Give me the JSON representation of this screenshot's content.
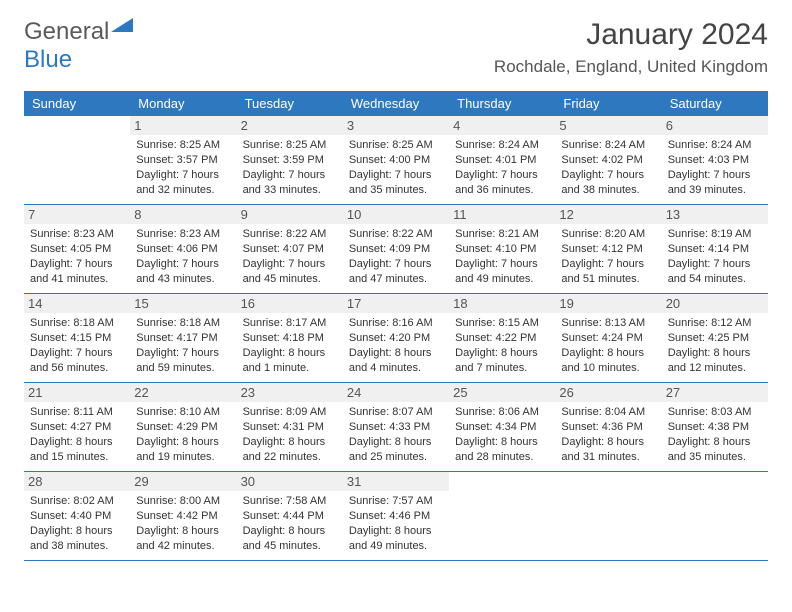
{
  "logo": {
    "part1": "General",
    "part2": "Blue"
  },
  "title": "January 2024",
  "location": "Rochdale, England, United Kingdom",
  "colors": {
    "accent": "#2e78c0",
    "header_bg": "#2e78c0",
    "header_text": "#ffffff",
    "daynum_bg": "#f0f0f0",
    "row_border": "#2e78c0",
    "text": "#333333",
    "title_color": "#444444",
    "logo_gray": "#5a5a5a"
  },
  "typography": {
    "title_fontsize": 30,
    "location_fontsize": 17,
    "dow_fontsize": 13,
    "daynum_fontsize": 13,
    "body_fontsize": 11
  },
  "days_of_week": [
    "Sunday",
    "Monday",
    "Tuesday",
    "Wednesday",
    "Thursday",
    "Friday",
    "Saturday"
  ],
  "weeks": [
    [
      null,
      {
        "n": "1",
        "sunrise": "Sunrise: 8:25 AM",
        "sunset": "Sunset: 3:57 PM",
        "d1": "Daylight: 7 hours",
        "d2": "and 32 minutes."
      },
      {
        "n": "2",
        "sunrise": "Sunrise: 8:25 AM",
        "sunset": "Sunset: 3:59 PM",
        "d1": "Daylight: 7 hours",
        "d2": "and 33 minutes."
      },
      {
        "n": "3",
        "sunrise": "Sunrise: 8:25 AM",
        "sunset": "Sunset: 4:00 PM",
        "d1": "Daylight: 7 hours",
        "d2": "and 35 minutes."
      },
      {
        "n": "4",
        "sunrise": "Sunrise: 8:24 AM",
        "sunset": "Sunset: 4:01 PM",
        "d1": "Daylight: 7 hours",
        "d2": "and 36 minutes."
      },
      {
        "n": "5",
        "sunrise": "Sunrise: 8:24 AM",
        "sunset": "Sunset: 4:02 PM",
        "d1": "Daylight: 7 hours",
        "d2": "and 38 minutes."
      },
      {
        "n": "6",
        "sunrise": "Sunrise: 8:24 AM",
        "sunset": "Sunset: 4:03 PM",
        "d1": "Daylight: 7 hours",
        "d2": "and 39 minutes."
      }
    ],
    [
      {
        "n": "7",
        "sunrise": "Sunrise: 8:23 AM",
        "sunset": "Sunset: 4:05 PM",
        "d1": "Daylight: 7 hours",
        "d2": "and 41 minutes."
      },
      {
        "n": "8",
        "sunrise": "Sunrise: 8:23 AM",
        "sunset": "Sunset: 4:06 PM",
        "d1": "Daylight: 7 hours",
        "d2": "and 43 minutes."
      },
      {
        "n": "9",
        "sunrise": "Sunrise: 8:22 AM",
        "sunset": "Sunset: 4:07 PM",
        "d1": "Daylight: 7 hours",
        "d2": "and 45 minutes."
      },
      {
        "n": "10",
        "sunrise": "Sunrise: 8:22 AM",
        "sunset": "Sunset: 4:09 PM",
        "d1": "Daylight: 7 hours",
        "d2": "and 47 minutes."
      },
      {
        "n": "11",
        "sunrise": "Sunrise: 8:21 AM",
        "sunset": "Sunset: 4:10 PM",
        "d1": "Daylight: 7 hours",
        "d2": "and 49 minutes."
      },
      {
        "n": "12",
        "sunrise": "Sunrise: 8:20 AM",
        "sunset": "Sunset: 4:12 PM",
        "d1": "Daylight: 7 hours",
        "d2": "and 51 minutes."
      },
      {
        "n": "13",
        "sunrise": "Sunrise: 8:19 AM",
        "sunset": "Sunset: 4:14 PM",
        "d1": "Daylight: 7 hours",
        "d2": "and 54 minutes."
      }
    ],
    [
      {
        "n": "14",
        "sunrise": "Sunrise: 8:18 AM",
        "sunset": "Sunset: 4:15 PM",
        "d1": "Daylight: 7 hours",
        "d2": "and 56 minutes."
      },
      {
        "n": "15",
        "sunrise": "Sunrise: 8:18 AM",
        "sunset": "Sunset: 4:17 PM",
        "d1": "Daylight: 7 hours",
        "d2": "and 59 minutes."
      },
      {
        "n": "16",
        "sunrise": "Sunrise: 8:17 AM",
        "sunset": "Sunset: 4:18 PM",
        "d1": "Daylight: 8 hours",
        "d2": "and 1 minute."
      },
      {
        "n": "17",
        "sunrise": "Sunrise: 8:16 AM",
        "sunset": "Sunset: 4:20 PM",
        "d1": "Daylight: 8 hours",
        "d2": "and 4 minutes."
      },
      {
        "n": "18",
        "sunrise": "Sunrise: 8:15 AM",
        "sunset": "Sunset: 4:22 PM",
        "d1": "Daylight: 8 hours",
        "d2": "and 7 minutes."
      },
      {
        "n": "19",
        "sunrise": "Sunrise: 8:13 AM",
        "sunset": "Sunset: 4:24 PM",
        "d1": "Daylight: 8 hours",
        "d2": "and 10 minutes."
      },
      {
        "n": "20",
        "sunrise": "Sunrise: 8:12 AM",
        "sunset": "Sunset: 4:25 PM",
        "d1": "Daylight: 8 hours",
        "d2": "and 12 minutes."
      }
    ],
    [
      {
        "n": "21",
        "sunrise": "Sunrise: 8:11 AM",
        "sunset": "Sunset: 4:27 PM",
        "d1": "Daylight: 8 hours",
        "d2": "and 15 minutes."
      },
      {
        "n": "22",
        "sunrise": "Sunrise: 8:10 AM",
        "sunset": "Sunset: 4:29 PM",
        "d1": "Daylight: 8 hours",
        "d2": "and 19 minutes."
      },
      {
        "n": "23",
        "sunrise": "Sunrise: 8:09 AM",
        "sunset": "Sunset: 4:31 PM",
        "d1": "Daylight: 8 hours",
        "d2": "and 22 minutes."
      },
      {
        "n": "24",
        "sunrise": "Sunrise: 8:07 AM",
        "sunset": "Sunset: 4:33 PM",
        "d1": "Daylight: 8 hours",
        "d2": "and 25 minutes."
      },
      {
        "n": "25",
        "sunrise": "Sunrise: 8:06 AM",
        "sunset": "Sunset: 4:34 PM",
        "d1": "Daylight: 8 hours",
        "d2": "and 28 minutes."
      },
      {
        "n": "26",
        "sunrise": "Sunrise: 8:04 AM",
        "sunset": "Sunset: 4:36 PM",
        "d1": "Daylight: 8 hours",
        "d2": "and 31 minutes."
      },
      {
        "n": "27",
        "sunrise": "Sunrise: 8:03 AM",
        "sunset": "Sunset: 4:38 PM",
        "d1": "Daylight: 8 hours",
        "d2": "and 35 minutes."
      }
    ],
    [
      {
        "n": "28",
        "sunrise": "Sunrise: 8:02 AM",
        "sunset": "Sunset: 4:40 PM",
        "d1": "Daylight: 8 hours",
        "d2": "and 38 minutes."
      },
      {
        "n": "29",
        "sunrise": "Sunrise: 8:00 AM",
        "sunset": "Sunset: 4:42 PM",
        "d1": "Daylight: 8 hours",
        "d2": "and 42 minutes."
      },
      {
        "n": "30",
        "sunrise": "Sunrise: 7:58 AM",
        "sunset": "Sunset: 4:44 PM",
        "d1": "Daylight: 8 hours",
        "d2": "and 45 minutes."
      },
      {
        "n": "31",
        "sunrise": "Sunrise: 7:57 AM",
        "sunset": "Sunset: 4:46 PM",
        "d1": "Daylight: 8 hours",
        "d2": "and 49 minutes."
      },
      null,
      null,
      null
    ]
  ]
}
